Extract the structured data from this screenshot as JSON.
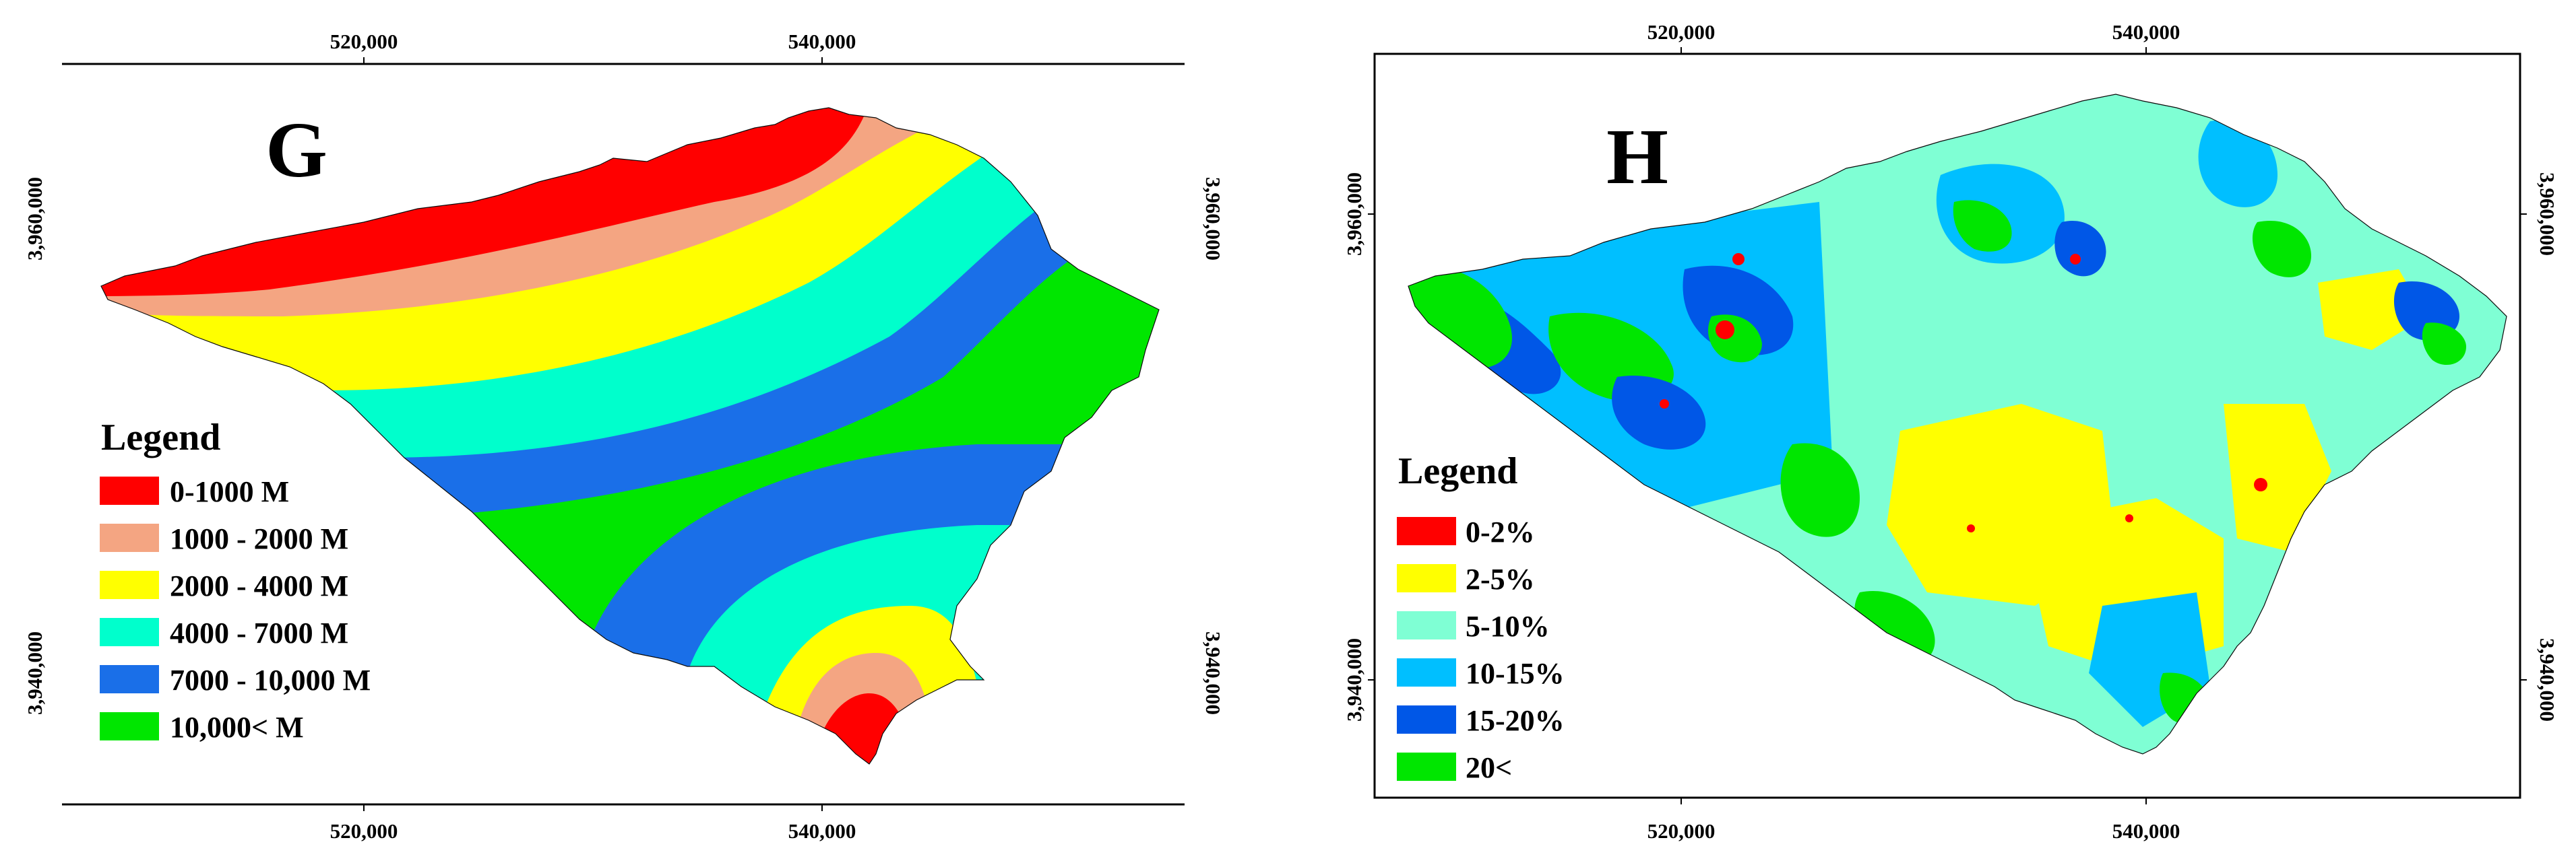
{
  "panels": [
    {
      "id": "G",
      "letter": "G",
      "x_ticks": [
        "520,000",
        "540,000"
      ],
      "y_ticks": [
        "3,960,000",
        "3,940,000"
      ],
      "legend": {
        "title": "Legend",
        "items": [
          {
            "label": "0-1000 M",
            "color": "#ff0000"
          },
          {
            "label": "1000 - 2000 M",
            "color": "#f4a582"
          },
          {
            "label": "2000 - 4000 M",
            "color": "#ffff00"
          },
          {
            "label": "4000 - 7000 M",
            "color": "#00ffcc"
          },
          {
            "label": "7000 - 10,000 M",
            "color": "#1a6fe8"
          },
          {
            "label": "10,000< M",
            "color": "#00e600"
          }
        ]
      }
    },
    {
      "id": "H",
      "letter": "H",
      "x_ticks": [
        "520,000",
        "540,000"
      ],
      "y_ticks": [
        "3,960,000",
        "3,940,000"
      ],
      "legend": {
        "title": "Legend",
        "items": [
          {
            "label": "0-2%",
            "color": "#ff0000"
          },
          {
            "label": "2-5%",
            "color": "#ffff00"
          },
          {
            "label": "5-10%",
            "color": "#7fffd4"
          },
          {
            "label": "10-15%",
            "color": "#00bfff"
          },
          {
            "label": "15-20%",
            "color": "#0057e7"
          },
          {
            "label": "20<",
            "color": "#00e600"
          }
        ]
      }
    }
  ]
}
